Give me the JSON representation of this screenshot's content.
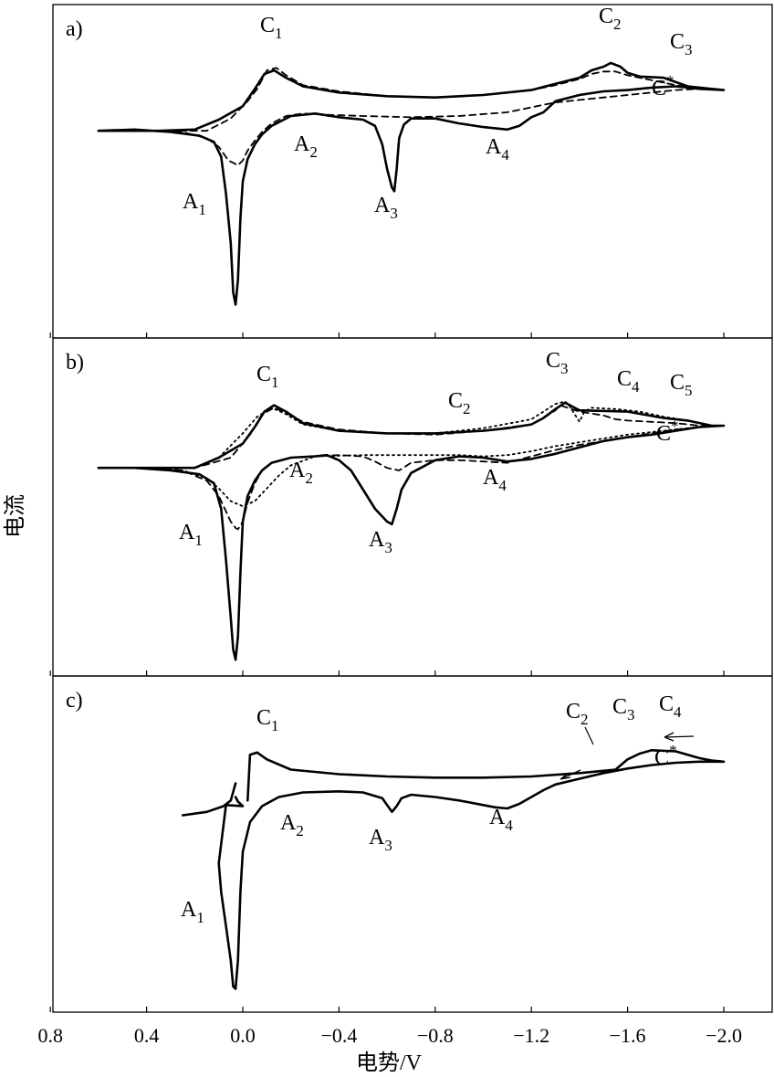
{
  "chart_data": {
    "type": "line",
    "xlabel": "电势/V",
    "ylabel": "电流",
    "x_ticks": [
      "0.8",
      "0.4",
      "0.0",
      "−0.4",
      "−0.8",
      "−1.2",
      "−1.6",
      "−2.0"
    ],
    "x_tick_values": [
      0.8,
      0.4,
      0.0,
      -0.4,
      -0.8,
      -1.2,
      -1.6,
      -2.0
    ],
    "xlim": [
      0.8,
      -2.1
    ],
    "y_ticks": "none",
    "grid": false,
    "legend": "none",
    "panels": [
      {
        "label": "a)",
        "peaks": [
          {
            "base": "C",
            "sub": "1",
            "sup": "",
            "x": -0.13
          },
          {
            "base": "C",
            "sub": "2",
            "sup": "",
            "x": -1.53
          },
          {
            "base": "C",
            "sub": "3",
            "sup": "",
            "x": -1.78
          },
          {
            "base": "C",
            "sub": "",
            "sup": "*",
            "x": -1.73
          },
          {
            "base": "A",
            "sub": "1",
            "sup": "",
            "x": 0.03
          },
          {
            "base": "A",
            "sub": "2",
            "sup": "",
            "x": -0.22
          },
          {
            "base": "A",
            "sub": "3",
            "sup": "",
            "x": -0.63
          },
          {
            "base": "A",
            "sub": "4",
            "sup": "",
            "x": -1.09
          }
        ],
        "series": [
          {
            "style": "solid",
            "x": [
              0.6,
              0.45,
              0.3,
              0.18,
              0.12,
              0.09,
              0.07,
              0.05,
              0.04,
              0.03,
              0.02,
              0.01,
              0.0,
              -0.02,
              -0.05,
              -0.08,
              -0.12,
              -0.2,
              -0.3,
              -0.4,
              -0.5,
              -0.55,
              -0.58,
              -0.6,
              -0.62,
              -0.63,
              -0.64,
              -0.65,
              -0.67,
              -0.7,
              -0.8,
              -0.9,
              -1.0,
              -1.1,
              -1.15,
              -1.2,
              -1.25,
              -1.3,
              -1.4,
              -1.5,
              -1.6,
              -1.7,
              -1.8,
              -1.9,
              -2.0,
              -1.95,
              -1.85,
              -1.75,
              -1.65,
              -1.6,
              -1.57,
              -1.53,
              -1.5,
              -1.45,
              -1.4,
              -1.3,
              -1.2,
              -1.0,
              -0.8,
              -0.6,
              -0.4,
              -0.25,
              -0.18,
              -0.13,
              -0.09,
              -0.05,
              0.0,
              0.1,
              0.2,
              0.35,
              0.5,
              0.6
            ],
            "y": [
              -0.9,
              -0.8,
              -1.0,
              -1.3,
              -1.8,
              -3.0,
              -6.0,
              -10.0,
              -14.0,
              -15.0,
              -13.0,
              -8.0,
              -5.0,
              -3.2,
              -2.0,
              -1.2,
              -0.5,
              0.3,
              0.5,
              0.2,
              0.0,
              -0.5,
              -2.0,
              -4.0,
              -5.5,
              -5.8,
              -4.0,
              -1.5,
              -0.4,
              0.1,
              0.1,
              -0.3,
              -0.6,
              -0.8,
              -0.5,
              0.2,
              0.6,
              1.5,
              2.0,
              2.3,
              2.4,
              2.6,
              2.7,
              2.5,
              2.4,
              2.5,
              2.7,
              3.4,
              3.5,
              3.8,
              4.3,
              4.6,
              4.3,
              4.0,
              3.4,
              2.9,
              2.4,
              2.0,
              1.8,
              1.9,
              2.2,
              2.7,
              3.4,
              4.0,
              3.7,
              2.5,
              1.1,
              0.0,
              -0.8,
              -0.9,
              -0.9,
              -0.9
            ]
          },
          {
            "style": "dashed",
            "x": [
              0.6,
              0.4,
              0.25,
              0.15,
              0.1,
              0.06,
              0.02,
              0.0,
              -0.02,
              -0.05,
              -0.08,
              -0.12,
              -0.18,
              -0.25,
              -0.35,
              -0.5,
              -0.7,
              -0.9,
              -1.1,
              -1.2,
              -1.3,
              -1.4,
              -1.5,
              -1.6,
              -1.7,
              -1.8,
              -1.9,
              -2.0,
              -1.9,
              -1.8,
              -1.7,
              -1.6,
              -1.55,
              -1.5,
              -1.45,
              -1.4,
              -1.3,
              -1.2,
              -1.0,
              -0.8,
              -0.6,
              -0.4,
              -0.25,
              -0.18,
              -0.14,
              -0.1,
              -0.06,
              -0.02,
              0.05,
              0.15,
              0.3,
              0.45,
              0.6
            ],
            "y": [
              -0.9,
              -0.9,
              -1.0,
              -1.5,
              -2.2,
              -3.3,
              -3.7,
              -3.3,
              -2.5,
              -1.7,
              -1.0,
              -0.3,
              0.3,
              0.5,
              0.4,
              0.3,
              0.2,
              0.3,
              0.6,
              1.0,
              1.4,
              1.6,
              1.8,
              2.0,
              2.2,
              2.4,
              2.5,
              2.4,
              2.5,
              2.8,
              3.2,
              3.6,
              3.9,
              3.9,
              3.7,
              3.3,
              2.8,
              2.4,
              2.0,
              1.8,
              1.9,
              2.3,
              2.8,
              3.6,
              4.2,
              4.0,
              2.5,
              1.5,
              0.1,
              -0.9,
              -0.9,
              -0.9,
              -0.9
            ]
          }
        ]
      },
      {
        "label": "b)",
        "peaks": [
          {
            "base": "C",
            "sub": "1",
            "sup": "",
            "x": -0.13
          },
          {
            "base": "C",
            "sub": "2",
            "sup": "",
            "x": -0.97
          },
          {
            "base": "C",
            "sub": "3",
            "sup": "",
            "x": -1.33
          },
          {
            "base": "C",
            "sub": "4",
            "sup": "",
            "x": -1.62
          },
          {
            "base": "C",
            "sub": "5",
            "sup": "",
            "x": -1.84
          },
          {
            "base": "C",
            "sub": "",
            "sup": "*",
            "x": -1.77
          },
          {
            "base": "A",
            "sub": "1",
            "sup": "",
            "x": 0.03
          },
          {
            "base": "A",
            "sub": "2",
            "sup": "",
            "x": -0.23
          },
          {
            "base": "A",
            "sub": "3",
            "sup": "",
            "x": -0.62
          },
          {
            "base": "A",
            "sub": "4",
            "sup": "",
            "x": -1.09
          }
        ],
        "series": [
          {
            "style": "solid",
            "x": [
              0.6,
              0.45,
              0.3,
              0.18,
              0.12,
              0.09,
              0.07,
              0.05,
              0.04,
              0.03,
              0.02,
              0.01,
              0.0,
              -0.02,
              -0.05,
              -0.08,
              -0.12,
              -0.2,
              -0.3,
              -0.35,
              -0.4,
              -0.45,
              -0.5,
              -0.55,
              -0.6,
              -0.62,
              -0.64,
              -0.66,
              -0.7,
              -0.8,
              -0.9,
              -1.0,
              -1.1,
              -1.2,
              -1.3,
              -1.4,
              -1.5,
              -1.6,
              -1.7,
              -1.8,
              -1.9,
              -2.0,
              -1.95,
              -1.85,
              -1.75,
              -1.6,
              -1.4,
              -1.38,
              -1.34,
              -1.3,
              -1.25,
              -1.2,
              -1.1,
              -1.0,
              -0.8,
              -0.6,
              -0.4,
              -0.25,
              -0.18,
              -0.13,
              -0.09,
              -0.05,
              0.0,
              0.1,
              0.2,
              0.35,
              0.5,
              0.6
            ],
            "y": [
              -0.8,
              -0.8,
              -1.0,
              -1.3,
              -2.0,
              -4.0,
              -8.0,
              -12.5,
              -15.0,
              -15.8,
              -14.0,
              -9.0,
              -5.0,
              -3.0,
              -1.8,
              -1.0,
              -0.4,
              0.0,
              0.1,
              0.2,
              -0.2,
              -1.0,
              -2.5,
              -4.0,
              -5.0,
              -5.2,
              -4.0,
              -2.5,
              -1.2,
              -0.2,
              0.1,
              0.0,
              -0.3,
              -0.1,
              0.3,
              0.8,
              1.3,
              1.6,
              1.8,
              2.1,
              2.4,
              2.5,
              2.5,
              2.9,
              3.1,
              3.6,
              3.7,
              3.9,
              4.3,
              3.8,
              3.1,
              2.6,
              2.3,
              2.1,
              1.9,
              1.9,
              2.1,
              2.7,
              3.6,
              4.1,
              3.6,
              2.4,
              1.1,
              0.0,
              -0.8,
              -0.8,
              -0.8,
              -0.8
            ]
          },
          {
            "style": "dashed",
            "x": [
              0.6,
              0.4,
              0.25,
              0.15,
              0.1,
              0.07,
              0.05,
              0.03,
              0.02,
              0.0,
              -0.02,
              -0.05,
              -0.08,
              -0.12,
              -0.2,
              -0.3,
              -0.4,
              -0.5,
              -0.55,
              -0.6,
              -0.65,
              -0.7,
              -0.8,
              -0.9,
              -1.0,
              -1.1,
              -1.2,
              -1.3,
              -1.4,
              -1.5,
              -1.6,
              -1.7,
              -1.8,
              -1.9,
              -2.0,
              -1.9,
              -1.8,
              -1.7,
              -1.6,
              -1.55,
              -1.5,
              -1.4,
              -1.35,
              -1.32,
              -1.3,
              -1.25,
              -1.2,
              -1.0,
              -0.8,
              -0.6,
              -0.4,
              -0.25,
              -0.18,
              -0.13,
              -0.08,
              -0.03,
              0.05,
              0.2,
              0.4,
              0.6
            ],
            "y": [
              -0.8,
              -0.8,
              -1.0,
              -1.8,
              -3.0,
              -4.2,
              -5.0,
              -5.5,
              -5.6,
              -5.0,
              -3.5,
              -2.0,
              -1.0,
              -0.4,
              0.0,
              0.1,
              0.2,
              0.1,
              -0.3,
              -0.8,
              -1.0,
              -0.4,
              -0.2,
              -0.2,
              -0.3,
              -0.4,
              0.1,
              0.6,
              1.0,
              1.3,
              1.6,
              1.9,
              2.2,
              2.4,
              2.5,
              2.5,
              2.7,
              2.8,
              2.9,
              3.0,
              3.3,
              3.6,
              3.9,
              4.1,
              3.7,
              3.1,
              2.6,
              2.1,
              1.8,
              1.9,
              2.2,
              2.8,
              3.5,
              3.9,
              3.4,
              1.8,
              0.0,
              -0.8,
              -0.8,
              -0.8
            ]
          },
          {
            "style": "dotted",
            "x": [
              0.6,
              0.4,
              0.25,
              0.15,
              0.1,
              0.05,
              0.0,
              -0.05,
              -0.1,
              -0.15,
              -0.2,
              -0.3,
              -0.5,
              -0.7,
              -0.9,
              -1.0,
              -1.1,
              -1.2,
              -1.3,
              -1.4,
              -1.5,
              -1.6,
              -1.7,
              -1.8,
              -1.9,
              -2.0,
              -1.95,
              -1.85,
              -1.75,
              -1.65,
              -1.55,
              -1.45,
              -1.42,
              -1.4,
              -1.38,
              -1.36,
              -1.34,
              -1.3,
              -1.2,
              -1.0,
              -0.8,
              -0.6,
              -0.4,
              -0.25,
              -0.18,
              -0.12,
              -0.06,
              0.0,
              0.1,
              0.2,
              0.35,
              0.5,
              0.6
            ],
            "y": [
              -0.8,
              -0.8,
              -1.0,
              -1.6,
              -2.4,
              -3.4,
              -3.8,
              -3.4,
              -2.4,
              -1.4,
              -0.6,
              0.1,
              0.2,
              0.2,
              0.2,
              0.1,
              0.2,
              0.5,
              0.9,
              1.2,
              1.5,
              1.8,
              2.0,
              2.2,
              2.4,
              2.5,
              2.5,
              2.9,
              3.2,
              3.6,
              3.8,
              3.9,
              3.6,
              2.8,
              3.4,
              4.0,
              4.4,
              4.2,
              3.0,
              2.3,
              1.9,
              1.9,
              2.1,
              2.6,
              3.4,
              3.9,
              3.2,
              1.9,
              0.0,
              -0.8,
              -0.8,
              -0.8,
              -0.8
            ]
          }
        ]
      },
      {
        "label": "c)",
        "peaks": [
          {
            "base": "C",
            "sub": "1",
            "sup": "",
            "x": -0.1
          },
          {
            "base": "C",
            "sub": "2",
            "sup": "",
            "x": -1.41
          },
          {
            "base": "C",
            "sub": "3",
            "sup": "",
            "x": -1.63
          },
          {
            "base": "C",
            "sub": "4",
            "sup": "",
            "x": -1.79
          },
          {
            "base": "C",
            "sub": "",
            "sup": "*",
            "x": -1.76
          },
          {
            "base": "A",
            "sub": "1",
            "sup": "",
            "x": 0.2
          },
          {
            "base": "A",
            "sub": "2",
            "sup": "",
            "x": -0.24
          },
          {
            "base": "A",
            "sub": "3",
            "sup": "",
            "x": -0.59
          },
          {
            "base": "A",
            "sub": "4",
            "sup": "",
            "x": -1.08
          }
        ],
        "series": [
          {
            "style": "solid",
            "x": [
              0.25,
              0.15,
              0.08,
              0.05,
              0.03
            ],
            "y": [
              -1.8,
              -1.5,
              -1.0,
              -0.5,
              1.0
            ]
          },
          {
            "style": "solid",
            "x": [
              0.03,
              0.02,
              0.0,
              0.07,
              0.1,
              0.09,
              0.07,
              0.05,
              0.04,
              0.03,
              0.02,
              0.01,
              0.0,
              -0.03,
              -0.08,
              -0.15,
              -0.25,
              -0.4,
              -0.5,
              -0.58,
              -0.62,
              -0.64,
              -0.66,
              -0.7,
              -0.8,
              -0.9,
              -1.0,
              -1.05,
              -1.1,
              -1.15,
              -1.2,
              -1.25,
              -1.3,
              -1.4,
              -1.5,
              -1.6,
              -1.7,
              -1.8,
              -1.9,
              -2.0,
              -1.95,
              -1.9,
              -1.8,
              -1.7,
              -1.65,
              -1.6,
              -1.55,
              -1.5,
              -1.4,
              -1.2,
              -1.0,
              -0.8,
              -0.6,
              -0.4,
              -0.2,
              -0.1,
              -0.06,
              -0.03,
              -0.02
            ],
            "y": [
              -0.2,
              -0.6,
              -1.0,
              -0.9,
              -6.0,
              -8.5,
              -11.5,
              -14.5,
              -16.8,
              -17.0,
              -14.5,
              -8.5,
              -5.0,
              -2.4,
              -1.0,
              -0.2,
              0.2,
              0.3,
              0.2,
              -0.3,
              -1.5,
              -1.0,
              -0.3,
              0.0,
              -0.2,
              -0.5,
              -0.9,
              -1.1,
              -1.2,
              -0.8,
              -0.2,
              0.4,
              0.9,
              1.4,
              1.9,
              2.3,
              2.6,
              2.8,
              2.9,
              2.9,
              3.0,
              3.2,
              3.8,
              3.9,
              3.6,
              3.1,
              2.2,
              2.1,
              1.9,
              1.6,
              1.5,
              1.5,
              1.6,
              1.8,
              2.2,
              3.1,
              3.7,
              3.5,
              -0.5
            ]
          }
        ]
      }
    ]
  }
}
